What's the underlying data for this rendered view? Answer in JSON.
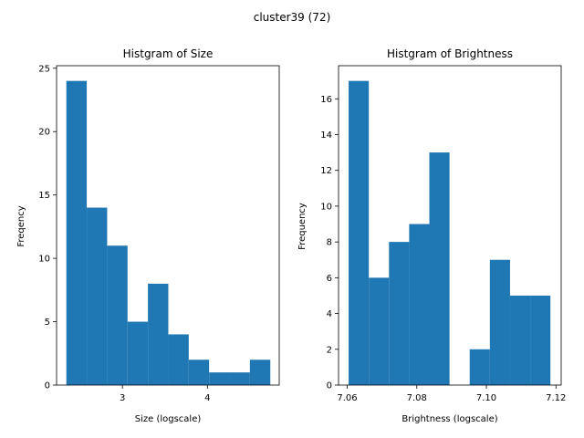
{
  "suptitle": "cluster39 (72)",
  "bar_color": "#1f77b4",
  "chart_data": [
    {
      "type": "bar",
      "title": "Histgram of Size",
      "xlabel": "Size (logscale)",
      "ylabel": "Freqency",
      "xlim": [
        2.225,
        4.845
      ],
      "ylim": [
        0,
        25.2
      ],
      "xticks": [
        3,
        4
      ],
      "yticks": [
        0,
        5,
        10,
        15,
        20,
        25
      ],
      "bins": [
        {
          "x0": 2.34,
          "x1": 2.58,
          "value": 24
        },
        {
          "x0": 2.58,
          "x1": 2.82,
          "value": 14
        },
        {
          "x0": 2.82,
          "x1": 3.06,
          "value": 11
        },
        {
          "x0": 3.06,
          "x1": 3.3,
          "value": 5
        },
        {
          "x0": 3.3,
          "x1": 3.54,
          "value": 8
        },
        {
          "x0": 3.54,
          "x1": 3.78,
          "value": 4
        },
        {
          "x0": 3.78,
          "x1": 4.02,
          "value": 2
        },
        {
          "x0": 4.02,
          "x1": 4.26,
          "value": 1
        },
        {
          "x0": 4.26,
          "x1": 4.5,
          "value": 1
        },
        {
          "x0": 4.5,
          "x1": 4.74,
          "value": 2
        }
      ]
    },
    {
      "type": "bar",
      "title": "Histgram of Brightness",
      "xlabel": "Brightness (logscale)",
      "ylabel": "Frequency",
      "xlim": [
        7.0575,
        7.1215
      ],
      "ylim": [
        0,
        17.85
      ],
      "xticks": [
        7.06,
        7.08,
        7.1,
        7.12
      ],
      "xtick_labels": [
        "7.06",
        "7.08",
        "7.10",
        "7.12"
      ],
      "yticks": [
        0,
        2,
        4,
        6,
        8,
        10,
        12,
        14,
        16
      ],
      "bins": [
        {
          "x0": 7.0604,
          "x1": 7.0662,
          "value": 17
        },
        {
          "x0": 7.0662,
          "x1": 7.072,
          "value": 6
        },
        {
          "x0": 7.072,
          "x1": 7.0778,
          "value": 8
        },
        {
          "x0": 7.0778,
          "x1": 7.0836,
          "value": 9
        },
        {
          "x0": 7.0836,
          "x1": 7.0894,
          "value": 13
        },
        {
          "x0": 7.0894,
          "x1": 7.0952,
          "value": 0
        },
        {
          "x0": 7.0952,
          "x1": 7.101,
          "value": 2
        },
        {
          "x0": 7.101,
          "x1": 7.1068,
          "value": 7
        },
        {
          "x0": 7.1068,
          "x1": 7.1126,
          "value": 5
        },
        {
          "x0": 7.1126,
          "x1": 7.1184,
          "value": 5
        }
      ]
    }
  ]
}
